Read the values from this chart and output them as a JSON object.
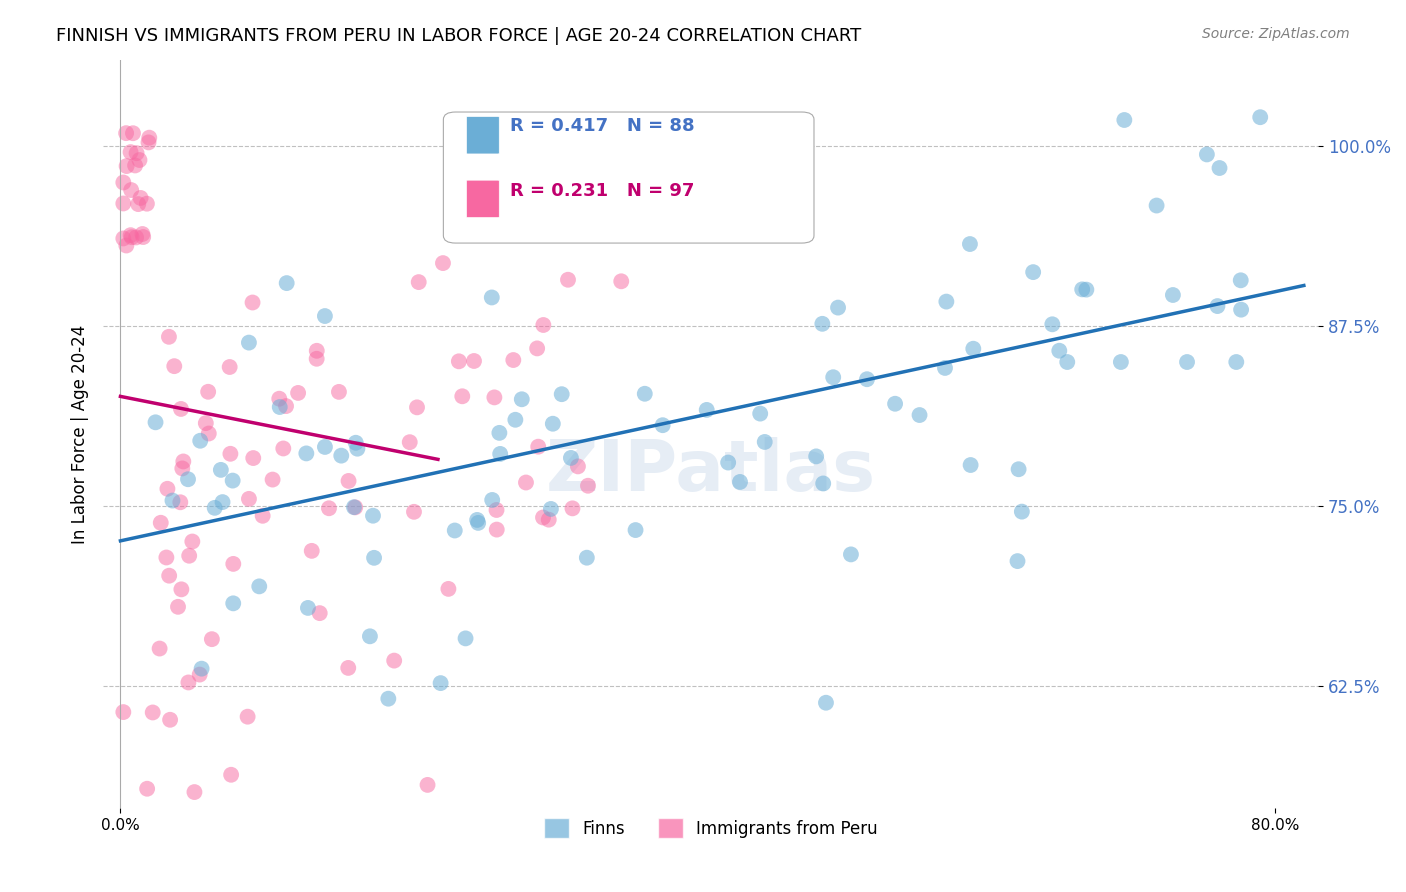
{
  "title": "FINNISH VS IMMIGRANTS FROM PERU IN LABOR FORCE | AGE 20-24 CORRELATION CHART",
  "source": "Source: ZipAtlas.com",
  "ylabel": "In Labor Force | Age 20-24",
  "yticks": [
    0.625,
    0.75,
    0.875,
    1.0
  ],
  "ytick_labels": [
    "62.5%",
    "75.0%",
    "87.5%",
    "100.0%"
  ],
  "finns_R": 0.417,
  "finns_N": 88,
  "peru_R": 0.231,
  "peru_N": 97,
  "finns_color": "#6baed6",
  "peru_color": "#f768a1",
  "finns_line_color": "#2171b5",
  "peru_line_color": "#c0006e",
  "background_color": "#ffffff",
  "grid_color": "#c0c0c0"
}
